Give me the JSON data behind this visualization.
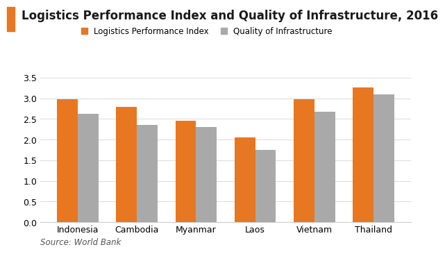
{
  "title": "Logistics Performance Index and Quality of Infrastructure, 2016",
  "title_accent_color": "#E87722",
  "categories": [
    "Indonesia",
    "Cambodia",
    "Myanmar",
    "Laos",
    "Vietnam",
    "Thailand"
  ],
  "lpi_values": [
    2.98,
    2.8,
    2.46,
    2.06,
    2.98,
    3.26
  ],
  "qoi_values": [
    2.63,
    2.35,
    2.31,
    1.75,
    2.68,
    3.09
  ],
  "lpi_color": "#E87722",
  "qoi_color": "#A9A9A9",
  "lpi_label": "Logistics Performance Index",
  "qoi_label": "Quality of Infrastructure",
  "ylim": [
    0,
    3.5
  ],
  "yticks": [
    0,
    0.5,
    1.0,
    1.5,
    2.0,
    2.5,
    3.0,
    3.5
  ],
  "source_text": "Source: World Bank",
  "background_color": "#ffffff",
  "bar_width": 0.35,
  "legend_fontsize": 8.5,
  "title_fontsize": 12,
  "tick_fontsize": 9,
  "source_fontsize": 8.5
}
